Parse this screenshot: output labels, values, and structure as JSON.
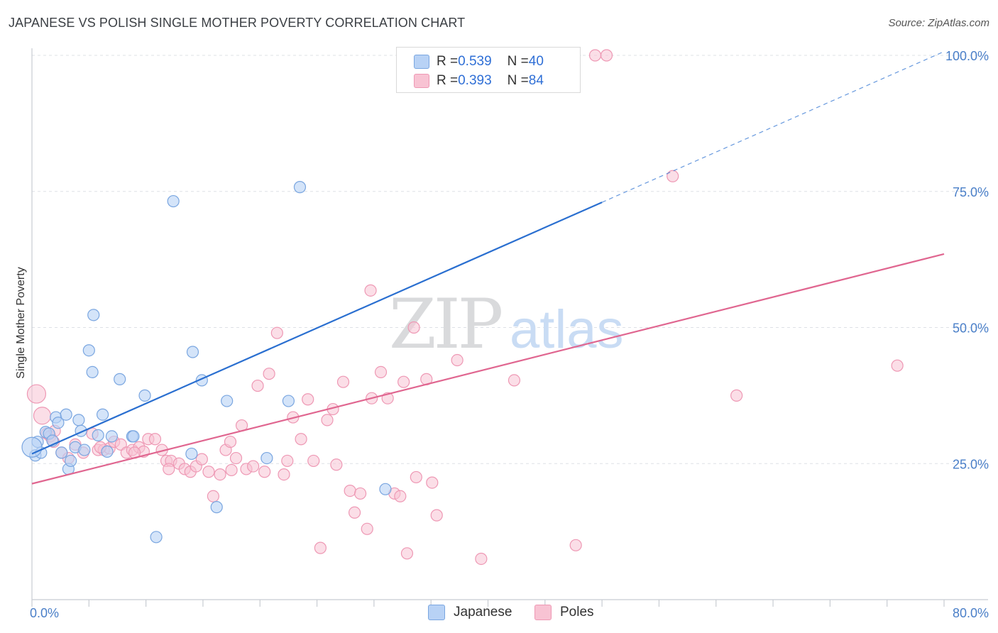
{
  "title": "JAPANESE VS POLISH SINGLE MOTHER POVERTY CORRELATION CHART",
  "source": "Source: ZipAtlas.com",
  "colors": {
    "japanese_fill": "#b8d2f5",
    "japanese_stroke": "#7aa6e0",
    "japanese_line": "#2a6fd0",
    "poles_fill": "#f8c3d3",
    "poles_stroke": "#ee98b4",
    "poles_line": "#e06690",
    "grid": "#dde0e6",
    "axis_text": "#4a7fc8"
  },
  "legend": {
    "rows": [
      {
        "r_label": "R = ",
        "r_value": "0.539",
        "n_label": "N = ",
        "n_value": "40",
        "series": "japanese"
      },
      {
        "r_label": "R = ",
        "r_value": "0.393",
        "n_label": "N = ",
        "n_value": "84",
        "series": "poles"
      }
    ]
  },
  "bottom_legend": [
    "Japanese",
    "Poles"
  ],
  "watermark": {
    "zip": "ZIP",
    "atlas": "atlas"
  },
  "chart_data": {
    "type": "scatter",
    "ylabel": "Single Mother Poverty",
    "xlabel": "",
    "xlim": [
      0,
      80
    ],
    "ylim": [
      0,
      105
    ],
    "x_tick_labels": [
      "0.0%",
      "80.0%"
    ],
    "y_tick_labels": [
      "25.0%",
      "50.0%",
      "75.0%",
      "100.0%"
    ],
    "y_ticks": [
      25,
      50,
      75,
      100
    ],
    "grid": "horizontal dashed",
    "series": [
      {
        "name": "Japanese",
        "r": 0.539,
        "n": 40,
        "trend": {
          "x0": 0,
          "y0": 26.8,
          "x1": 50,
          "y1": 73.0,
          "dashed_to_x": 80,
          "dashed_to_y": 100.7
        },
        "points": [
          [
            0.3,
            26.5
          ],
          [
            0.5,
            29.0
          ],
          [
            0.8,
            27.0
          ],
          [
            1.2,
            30.8
          ],
          [
            1.5,
            30.5
          ],
          [
            1.8,
            29.2
          ],
          [
            2.1,
            33.5
          ],
          [
            2.3,
            32.5
          ],
          [
            2.6,
            27.0
          ],
          [
            3.0,
            34.0
          ],
          [
            3.2,
            24.0
          ],
          [
            3.4,
            25.5
          ],
          [
            3.8,
            28.0
          ],
          [
            4.1,
            33.0
          ],
          [
            4.3,
            31.0
          ],
          [
            4.6,
            27.5
          ],
          [
            5.0,
            45.8
          ],
          [
            5.3,
            41.8
          ],
          [
            5.4,
            52.3
          ],
          [
            5.8,
            30.2
          ],
          [
            6.2,
            34.0
          ],
          [
            6.6,
            27.2
          ],
          [
            7.0,
            30.0
          ],
          [
            7.7,
            40.5
          ],
          [
            8.8,
            30.0
          ],
          [
            8.9,
            30.0
          ],
          [
            9.9,
            37.5
          ],
          [
            10.9,
            11.5
          ],
          [
            12.4,
            73.2
          ],
          [
            14.0,
            26.8
          ],
          [
            14.1,
            45.5
          ],
          [
            14.9,
            40.3
          ],
          [
            16.2,
            17.0
          ],
          [
            17.1,
            36.5
          ],
          [
            20.6,
            26.0
          ],
          [
            22.5,
            36.5
          ],
          [
            23.5,
            75.8
          ],
          [
            31.0,
            20.3
          ],
          [
            47.6,
            100.0
          ],
          [
            0.0,
            28.0
          ]
        ]
      },
      {
        "name": "Poles",
        "r": 0.393,
        "n": 84,
        "trend": {
          "x0": 0,
          "y0": 21.3,
          "x1": 80,
          "y1": 63.5
        },
        "points": [
          [
            0.4,
            37.8
          ],
          [
            0.9,
            33.8
          ],
          [
            1.3,
            30.5
          ],
          [
            1.6,
            30.0
          ],
          [
            1.9,
            29.0
          ],
          [
            2.6,
            27.0
          ],
          [
            3.2,
            26.0
          ],
          [
            3.8,
            28.5
          ],
          [
            4.5,
            27.0
          ],
          [
            5.3,
            30.5
          ],
          [
            5.8,
            27.5
          ],
          [
            6.3,
            27.5
          ],
          [
            6.8,
            27.8
          ],
          [
            7.2,
            29.0
          ],
          [
            7.8,
            28.5
          ],
          [
            8.3,
            27.0
          ],
          [
            8.8,
            27.5
          ],
          [
            9.4,
            28.0
          ],
          [
            9.8,
            27.2
          ],
          [
            10.2,
            29.5
          ],
          [
            10.8,
            29.5
          ],
          [
            11.4,
            27.5
          ],
          [
            11.8,
            25.5
          ],
          [
            12.2,
            25.5
          ],
          [
            12.9,
            25.0
          ],
          [
            13.4,
            24.0
          ],
          [
            13.9,
            23.5
          ],
          [
            14.4,
            24.5
          ],
          [
            14.9,
            25.8
          ],
          [
            15.5,
            23.5
          ],
          [
            15.9,
            19.0
          ],
          [
            16.5,
            23.0
          ],
          [
            17.0,
            27.5
          ],
          [
            17.4,
            29.0
          ],
          [
            17.9,
            26.0
          ],
          [
            18.4,
            32.0
          ],
          [
            18.8,
            24.0
          ],
          [
            19.4,
            24.5
          ],
          [
            19.8,
            39.3
          ],
          [
            20.4,
            23.5
          ],
          [
            20.8,
            41.5
          ],
          [
            21.5,
            49.0
          ],
          [
            22.1,
            23.0
          ],
          [
            22.4,
            25.5
          ],
          [
            22.9,
            33.5
          ],
          [
            23.6,
            29.5
          ],
          [
            24.2,
            36.8
          ],
          [
            24.7,
            25.5
          ],
          [
            25.3,
            9.5
          ],
          [
            25.9,
            33.0
          ],
          [
            26.4,
            35.0
          ],
          [
            26.7,
            24.8
          ],
          [
            27.3,
            40.0
          ],
          [
            27.9,
            20.0
          ],
          [
            28.3,
            16.0
          ],
          [
            28.8,
            19.5
          ],
          [
            29.4,
            13.0
          ],
          [
            29.7,
            56.8
          ],
          [
            29.8,
            37.0
          ],
          [
            30.6,
            41.8
          ],
          [
            31.2,
            37.0
          ],
          [
            31.8,
            19.5
          ],
          [
            32.3,
            19.0
          ],
          [
            32.6,
            40.0
          ],
          [
            32.9,
            8.5
          ],
          [
            33.5,
            50.0
          ],
          [
            33.7,
            22.5
          ],
          [
            34.6,
            40.5
          ],
          [
            35.1,
            21.5
          ],
          [
            35.5,
            15.5
          ],
          [
            37.3,
            44.0
          ],
          [
            39.4,
            7.5
          ],
          [
            42.3,
            40.3
          ],
          [
            47.7,
            10.0
          ],
          [
            49.4,
            100.0
          ],
          [
            50.4,
            100.0
          ],
          [
            56.2,
            77.8
          ],
          [
            61.8,
            37.5
          ],
          [
            75.9,
            43.0
          ],
          [
            2.0,
            31.0
          ],
          [
            6.0,
            28.0
          ],
          [
            9.0,
            27.0
          ],
          [
            12.0,
            24.0
          ],
          [
            17.5,
            23.8
          ]
        ]
      }
    ]
  }
}
